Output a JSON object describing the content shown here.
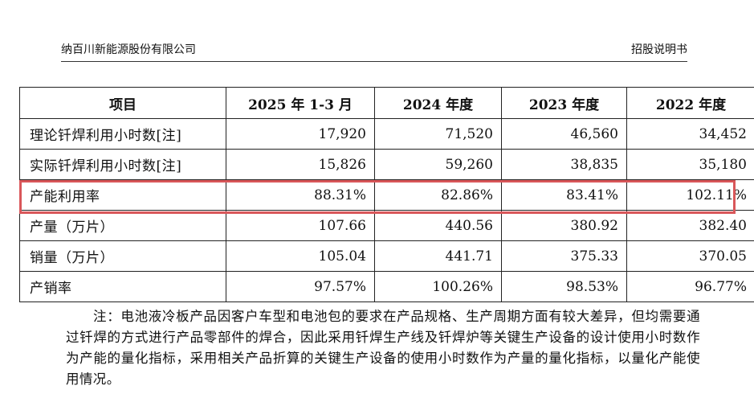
{
  "header": {
    "company": "纳百川新能源股份有限公司",
    "doc_type": "招股说明书"
  },
  "table": {
    "columns": [
      "项目",
      "2025 年 1-3 月",
      "2024 年度",
      "2023 年度",
      "2022 年度"
    ],
    "rows": [
      {
        "label": "理论钎焊利用小时数[注]",
        "values": [
          "17,920",
          "71,520",
          "46,560",
          "34,452"
        ]
      },
      {
        "label": "实际钎焊利用小时数[注]",
        "values": [
          "15,826",
          "59,260",
          "38,835",
          "35,180"
        ]
      },
      {
        "label": "产能利用率",
        "values": [
          "88.31%",
          "82.86%",
          "83.41%",
          "102.11%"
        ]
      },
      {
        "label": "产量（万片）",
        "values": [
          "107.66",
          "440.56",
          "380.92",
          "382.40"
        ]
      },
      {
        "label": "销量（万片）",
        "values": [
          "105.04",
          "441.71",
          "375.33",
          "370.05"
        ]
      },
      {
        "label": "产销率",
        "values": [
          "97.57%",
          "100.26%",
          "98.53%",
          "96.77%"
        ]
      }
    ]
  },
  "highlight": {
    "row_label": "产能利用率",
    "color": "#d9575a"
  },
  "note": "注：电池液冷板产品因客户车型和电池包的要求在产品规格、生产周期方面有较大差异，但均需要通过钎焊的方式进行产品零部件的焊合，因此采用钎焊生产线及钎焊炉等关键生产设备的设计使用小时数作为产能的量化指标，采用相关产品折算的关键生产设备的使用小时数作为产量的量化指标，以量化产能使用情况。"
}
